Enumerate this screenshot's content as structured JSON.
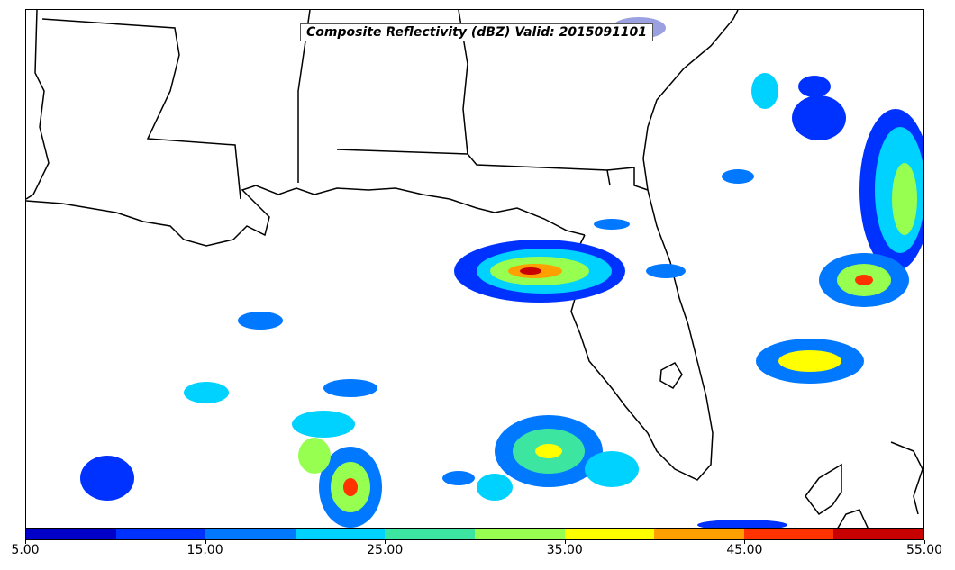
{
  "title": "Composite Reflectivity (dBZ) Valid: 2015091101",
  "colorbar": {
    "colors": [
      "#0000c8",
      "#0032ff",
      "#0078ff",
      "#00d2ff",
      "#3ce6a0",
      "#96ff50",
      "#ffff00",
      "#ffa000",
      "#ff3200",
      "#c80000"
    ],
    "ticks": [
      "5.00",
      "15.00",
      "25.00",
      "35.00",
      "45.00",
      "55.00"
    ]
  },
  "map": {
    "ocean_color": "#ffffff",
    "coastline_color": "#000000",
    "regions": [
      "Gulf of Mexico",
      "Florida",
      "Louisiana",
      "Mississippi",
      "Alabama",
      "Georgia"
    ]
  }
}
